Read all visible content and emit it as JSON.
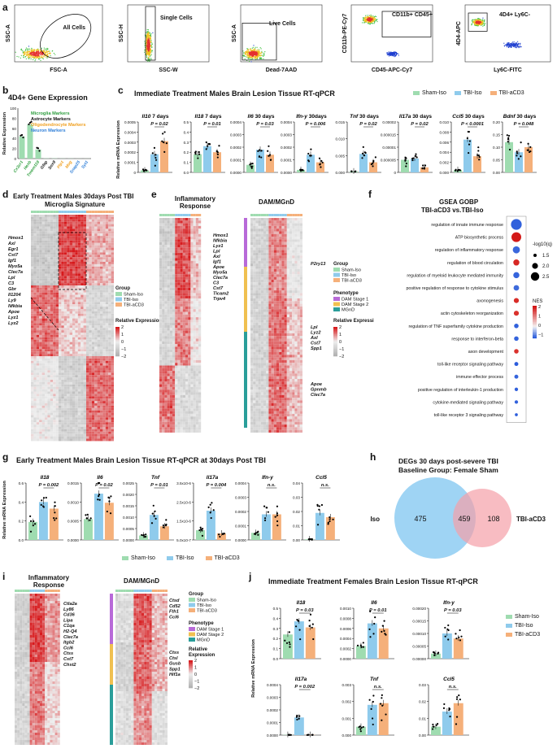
{
  "panels": {
    "a": {
      "label": "a",
      "gates": [
        {
          "xlabel": "FSC-A",
          "ylabel": "SSC-A",
          "gate": "All Cells"
        },
        {
          "xlabel": "SSC-W",
          "ylabel": "SSC-H",
          "gate": "Single Cells"
        },
        {
          "xlabel": "Dead-7AAD",
          "ylabel": "SSC-A",
          "gate": "Live Cells"
        },
        {
          "xlabel": "CD45-APC-Cy7",
          "ylabel": "CD11b-PE-Cy7",
          "gate": "CD11b+ CD45+"
        },
        {
          "xlabel": "Ly6C-FITC",
          "ylabel": "4D4-APC",
          "gate": "4D4+ Ly6C-"
        }
      ]
    },
    "b": {
      "label": "b",
      "title": "4D4+ Gene Expression",
      "ylabel": "Relative Expression",
      "legend": [
        {
          "text": "Microglia Markers",
          "color": "#2e9e3e"
        },
        {
          "text": "Astrocyte Markers",
          "color": "#111111"
        },
        {
          "text": "Oligodendrocyte Markers",
          "color": "#f0a020"
        },
        {
          "text": "Neuron Markers",
          "color": "#2f7fd8"
        }
      ]
    },
    "c": {
      "label": "c",
      "title": "Immediate Treatment Males Brain Lesion Tissue RT-qPCR",
      "ylabel": "Relative mRNA Expression",
      "legend": [
        {
          "text": "Sham-Iso",
          "color": "#9fdcb0"
        },
        {
          "text": "TBI-Iso",
          "color": "#8fcbec"
        },
        {
          "text": "TBI-aCD3",
          "color": "#f5b07a"
        }
      ],
      "subplots": [
        {
          "gene": "Il10",
          "time": "7 days",
          "p": "P = 0.02"
        },
        {
          "gene": "Il18",
          "time": "7 days",
          "p": "P = 0.01"
        },
        {
          "gene": "Il6",
          "time": "30 days",
          "p": "P = 0.03"
        },
        {
          "gene": "Ifn-y",
          "time": "30days",
          "p": "P = 0.006"
        },
        {
          "gene": "Tnf",
          "time": "30 days",
          "p": "P = 0.02"
        },
        {
          "gene": "Il17a",
          "time": "30 days",
          "p": "P = 0.02"
        },
        {
          "gene": "Ccl5",
          "time": "30 days",
          "p": "P < 0.0001"
        },
        {
          "gene": "Bdnf",
          "time": "30 days",
          "p": "P = 0.048"
        }
      ]
    },
    "d": {
      "label": "d",
      "title_line1": "Early Treatment Males 30days Post TBI",
      "title_line2": "Microglia Signature",
      "genes": [
        "Hmox1",
        "Axl",
        "Egr1",
        "Cst7",
        "Igf1",
        "Myo5a",
        "Clec7a",
        "Lpl",
        "C3",
        "Gbr",
        "Il1204",
        "Ly9",
        "Nfkbia",
        "Apoe",
        "Lyz1",
        "Lyz2"
      ],
      "group_title": "Group",
      "groups": [
        "Sham-Iso",
        "TBI-Iso",
        "TBI-aCD3"
      ],
      "scale_title": "Relative Expression",
      "scale_ticks": [
        "2",
        "1",
        "0",
        "-1",
        "-2"
      ]
    },
    "e": {
      "label": "e",
      "left_title": "Inflammatory Response",
      "right_title": "DAM/MGnD",
      "genes_top": [
        "Hmox1",
        "Nfkbia",
        "Lyz1",
        "Lpl",
        "Axl",
        "Igf1",
        "Apoe",
        "Myo5a",
        "Clec7a",
        "C3",
        "Cst7",
        "Ticam2",
        "Trpv4"
      ],
      "gene_p2ry": "P2ry13",
      "genes_mid": [
        "Lpl",
        "Lyz2",
        "Axl",
        "Cst7",
        "Spp1"
      ],
      "genes_bot": [
        "Apoe",
        "Gpnmb",
        "Clec7a"
      ],
      "group_title": "Group",
      "groups": [
        "Sham-Iso",
        "TBI-Iso",
        "TBI-aCD3"
      ],
      "phenotype_title": "Phenotype",
      "phenotypes": [
        {
          "text": "DAM Stage 1",
          "color": "#b86ad8"
        },
        {
          "text": "DAM Stage 2",
          "color": "#f0c050"
        },
        {
          "text": "MGnD",
          "color": "#2a9e9a"
        }
      ],
      "scale_title": "Relative Expression",
      "scale_ticks": [
        "2",
        "1",
        "0",
        "-1",
        "-2"
      ]
    },
    "f": {
      "label": "f",
      "title_line1": "GSEA GOBP",
      "title_line2": "TBI-aCD3 vs.TBI-Iso",
      "terms": [
        "regulation of innate immune response",
        "ATP biosynthetic process",
        "regulation of inflammatory response",
        "regulation of blood circulation",
        "regulation of myeloid leukocyte mediated immunity",
        "positive regulation of response to cytokine stimulus",
        "axonogenesis",
        "actin cytoskeleton reorganization",
        "regulation of TNF superfamily cytokine production",
        "response to interferon-beta",
        "axon development",
        "toll-like receptor signaling pathway",
        "immune effector process",
        "positive regulation of interleukin-1 production",
        "cytokine-mediated signaling pathway",
        "toll-like receptor 3 signaling pathway"
      ],
      "size_title": "-log10(q)",
      "size_ticks": [
        "1.5",
        "2.0",
        "2.5"
      ],
      "nes_title": "NES",
      "nes_ticks": [
        "2",
        "1",
        "0",
        "-1"
      ]
    },
    "g": {
      "label": "g",
      "title": "Early Treatment Males Brain Lesion Tissue RT-qPCR at 30days Post TBI",
      "ylabel": "Relative mRNA Expression",
      "subplots": [
        {
          "gene": "Il18",
          "p": "P = 0.002"
        },
        {
          "gene": "Il6",
          "p": "P = 0.02"
        },
        {
          "gene": "Tnf",
          "p": "P = 0.01"
        },
        {
          "gene": "Il17a",
          "p": "P = 0.004"
        },
        {
          "gene": "Ifn-y",
          "p": "n.s."
        },
        {
          "gene": "Ccl5",
          "p": "n.s."
        }
      ],
      "legend": [
        "Sham-Iso",
        "TBI-Iso",
        "TBI-aCD3"
      ]
    },
    "h": {
      "label": "h",
      "title_line1": "DEGs 30 days post-severe TBI",
      "title_line2": "Baseline Group: Female Sham",
      "left_name": "TBI-Iso",
      "right_name": "TBI-aCD3",
      "left_only": "475",
      "overlap": "459",
      "right_only": "108"
    },
    "i": {
      "label": "i",
      "left_title": "Inflammatory Response",
      "right_title": "DAM/MGnD",
      "genes_left": [
        "Ctla2a",
        "Ly86",
        "Cd36",
        "Lipa",
        "C1qa",
        "H2-Q4",
        "Clec7a",
        "Itgb2",
        "Ccl6",
        "Ctss",
        "Cst7",
        "Chst2"
      ],
      "genes_right_top": [
        "Ctsd",
        "Cd52",
        "Fth1",
        "Ccl6"
      ],
      "genes_right_mid": [
        "Ctss",
        "Ctsl",
        "Gusb",
        "Spp1",
        "Hif1a"
      ],
      "group_title": "Group",
      "groups": [
        "Sham-Iso",
        "TBI-Iso",
        "TBI-aCD3"
      ],
      "phenotype_title": "Phenotype",
      "phenotypes": [
        "DAM Stage 1",
        "DAM Stage 2",
        "MGnD"
      ],
      "scale_title": "Relative Expression",
      "scale_ticks": [
        "2",
        "1",
        "0",
        "-1",
        "-2"
      ]
    },
    "j": {
      "label": "j",
      "title": "Immediate Treatment Females Brain Lesion Tissue RT-qPCR",
      "ylabel": "Relative mRNA Expression",
      "subplots": [
        {
          "gene": "Il18",
          "p": "P = 0.03"
        },
        {
          "gene": "Il6",
          "p": "P = 0.01"
        },
        {
          "gene": "Ifn-y",
          "p": "P = 0.03"
        },
        {
          "gene": "Il17a",
          "p": "P = 0.002"
        },
        {
          "gene": "Tnf",
          "p": "n.s."
        },
        {
          "gene": "Ccl5",
          "p": "n.s."
        }
      ],
      "legend": [
        "Sham-Iso",
        "TBI-Iso",
        "TBI-aCD3"
      ]
    }
  },
  "colors": {
    "sham": "#9fdcb0",
    "iso": "#8fcbec",
    "acd3": "#f5b07a",
    "heat_high": "#d7191c",
    "heat_low": "#eeeeee"
  },
  "chart_data": [
    {
      "type": "bar",
      "id": "b",
      "categories": [
        "Cx3cr1",
        "Hexb",
        "Tmem119",
        "Gfap",
        "Sox9",
        "Plp1",
        "Mog",
        "Snap25",
        "Syt1"
      ],
      "values": [
        44,
        68,
        18,
        0.5,
        0.5,
        0.3,
        0.3,
        0.2,
        0.2
      ],
      "ylabel": "Relative Expression",
      "ylim": [
        0,
        100
      ]
    },
    {
      "type": "bar",
      "id": "c",
      "categories": [
        "Sham-Iso",
        "TBI-Iso",
        "TBI-aCD3"
      ],
      "series": [
        {
          "name": "Il10",
          "values": [
            2e-05,
            0.00018,
            0.00031
          ],
          "ylim": [
            0,
            0.0005
          ],
          "ticks": [
            "0.0005",
            "0.0004",
            "0.0003",
            "0.0002",
            "0.0001",
            "0"
          ]
        },
        {
          "name": "Il18",
          "values": [
            0.18,
            0.26,
            0.2
          ],
          "ylim": [
            0,
            0.5
          ],
          "ticks": [
            "0.5",
            "0.4",
            "0.3",
            "0.2",
            "0.1",
            "0.0"
          ]
        },
        {
          "name": "Il6",
          "values": [
            6e-05,
            0.00018,
            0.00014
          ],
          "ylim": [
            0,
            0.0004
          ],
          "ticks": [
            "0.0004",
            "0.0003",
            "0.0002",
            "0.0001",
            "0.0000"
          ]
        },
        {
          "name": "Ifn-y",
          "values": [
            2e-05,
            0.00014,
            8e-05
          ],
          "ylim": [
            0,
            0.0004
          ],
          "ticks": [
            "0.0004",
            "0.0003",
            "0.0002",
            "0.0001",
            "0.0000"
          ]
        },
        {
          "name": "Tnf",
          "values": [
            0.0003,
            0.0055,
            0.003
          ],
          "ylim": [
            0,
            0.015
          ],
          "ticks": [
            "0.015",
            "0.010",
            "0.005",
            "0.000"
          ]
        },
        {
          "name": "Il17a",
          "values": [
            5e-06,
            5.5e-06,
            2e-06
          ],
          "ylim": [
            0,
            2e-05
          ],
          "ticks": [
            "0.00002",
            "0.000015",
            "0.00001",
            "0.000005",
            "0"
          ]
        },
        {
          "name": "Ccl5",
          "values": [
            0.0005,
            0.0065,
            0.0032
          ],
          "ylim": [
            0,
            0.01
          ],
          "ticks": [
            "0.010",
            "0.008",
            "0.006",
            "0.004",
            "0.002",
            "0.000"
          ]
        },
        {
          "name": "Bdnf",
          "values": [
            0.12,
            0.08,
            0.1
          ],
          "ylim": [
            0,
            0.2
          ],
          "ticks": [
            "0.20",
            "0.15",
            "0.10",
            "0.05",
            "0.00"
          ]
        }
      ]
    },
    {
      "type": "bar",
      "id": "g",
      "categories": [
        "Sham-Iso",
        "TBI-Iso",
        "TBI-aCD3"
      ],
      "series": [
        {
          "name": "Il18",
          "values": [
            0.19,
            0.4,
            0.33
          ],
          "ylim": [
            0,
            0.6
          ],
          "ticks": [
            "0.6",
            "0.4",
            "0.2",
            "0.0"
          ]
        },
        {
          "name": "Il6",
          "values": [
            0.00055,
            0.00122,
            0.00098
          ],
          "ylim": [
            0,
            0.0015
          ],
          "ticks": [
            "0.0015",
            "0.0010",
            "0.0005",
            "0.0000"
          ]
        },
        {
          "name": "Tnf",
          "values": [
            0.0002,
            0.0011,
            0.0006
          ],
          "ylim": [
            0,
            0.0025
          ],
          "ticks": [
            "0.0025",
            "0.0020",
            "0.0015",
            "0.0010",
            "0.0005",
            "0.0000"
          ]
        },
        {
          "name": "Il17a",
          "values": [
            6e-07,
            1.8e-06,
            4e-07
          ],
          "ylim": [
            0,
            3.5e-06
          ],
          "ticks": [
            "3.5x10-6",
            "2.5x10-6",
            "1.5x10-6",
            "5.0x10-7"
          ]
        },
        {
          "name": "Ifn-y",
          "values": [
            5e-05,
            0.00018,
            0.00018
          ],
          "ylim": [
            0,
            0.0004
          ],
          "ticks": [
            "0.0004",
            "0.0003",
            "0.0002",
            "0.0001",
            "0.0000"
          ]
        },
        {
          "name": "Ccl5",
          "values": [
            0.0005,
            0.019,
            0.016
          ],
          "ylim": [
            0,
            0.04
          ],
          "ticks": [
            "0.04",
            "0.03",
            "0.02",
            "0.01",
            "0.00"
          ]
        }
      ]
    },
    {
      "type": "bar",
      "id": "j",
      "categories": [
        "Sham-Iso",
        "TBI-Iso",
        "TBI-aCD3"
      ],
      "series": [
        {
          "name": "Il18",
          "values": [
            0.24,
            0.37,
            0.31
          ],
          "ylim": [
            0,
            0.5
          ],
          "ticks": [
            "0.5",
            "0.4",
            "0.3",
            "0.2",
            "0.1",
            "0.0"
          ]
        },
        {
          "name": "Il6",
          "values": [
            0.00025,
            0.0007,
            0.0006
          ],
          "ylim": [
            0,
            0.001
          ],
          "ticks": [
            "0.0010",
            "0.0008",
            "0.0006",
            "0.0004",
            "0.0002",
            "0.0000"
          ]
        },
        {
          "name": "Ifn-y",
          "values": [
            2e-05,
            0.0001,
            8e-05
          ],
          "ylim": [
            0,
            0.0002
          ],
          "ticks": [
            "0.00020",
            "0.00015",
            "0.00010",
            "0.00005",
            "0.00000"
          ]
        },
        {
          "name": "Il17a",
          "values": [
            2e-06,
            0.00014,
            2e-06
          ],
          "ylim": [
            0,
            0.0004
          ],
          "ticks": [
            "0.0004",
            "0.0003",
            "0.0002",
            "0.0001",
            "0.0000"
          ]
        },
        {
          "name": "Tnf",
          "values": [
            0.0005,
            0.0018,
            0.0019
          ],
          "ylim": [
            0,
            0.003
          ],
          "ticks": [
            "0.003",
            "0.002",
            "0.001",
            "0.000"
          ]
        },
        {
          "name": "Ccl5",
          "values": [
            0.005,
            0.014,
            0.019
          ],
          "ylim": [
            0,
            0.03
          ],
          "ticks": [
            "0.03",
            "0.02",
            "0.01",
            "0.00"
          ]
        }
      ]
    },
    {
      "type": "scatter",
      "id": "f",
      "categories": [
        "regulation of innate immune response",
        "ATP biosynthetic process",
        "regulation of inflammatory response",
        "regulation of blood circulation",
        "regulation of myeloid leukocyte mediated immunity",
        "positive regulation of response to cytokine stimulus",
        "axonogenesis",
        "actin cytoskeleton reorganization",
        "regulation of TNF superfamily cytokine production",
        "response to interferon-beta",
        "axon development",
        "toll-like receptor signaling pathway",
        "immune effector process",
        "positive regulation of interleukin-1 production",
        "cytokine-mediated signaling pathway",
        "toll-like receptor 3 signaling pathway"
      ],
      "nes": [
        -1.6,
        2.1,
        -1.4,
        1.8,
        -1.5,
        -1.3,
        1.7,
        1.6,
        -1.6,
        -1.5,
        1.6,
        -1.7,
        -1.5,
        -1.6,
        -1.6,
        -1.7
      ],
      "neglog10q": [
        2.8,
        2.6,
        2.1,
        1.9,
        1.9,
        1.8,
        1.7,
        1.7,
        1.6,
        1.6,
        1.6,
        1.5,
        1.5,
        1.4,
        1.4,
        1.3
      ]
    }
  ]
}
